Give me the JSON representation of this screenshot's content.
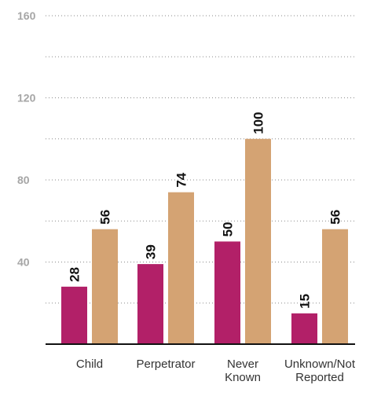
{
  "chart_data": {
    "type": "bar",
    "title": "",
    "xlabel": "",
    "ylabel": "",
    "ylim": [
      0,
      160
    ],
    "yticks_labeled": [
      40,
      80,
      120,
      160
    ],
    "grid_step": 20,
    "grid": true,
    "legend": "none",
    "categories": [
      "Child",
      "Perpetrator",
      "Never\nKnown",
      "Unknown/Not\nReported"
    ],
    "series": [
      {
        "color": "#b22068",
        "values": [
          28,
          39,
          50,
          15
        ]
      },
      {
        "color": "#d4a373",
        "values": [
          56,
          74,
          100,
          56
        ]
      }
    ]
  }
}
